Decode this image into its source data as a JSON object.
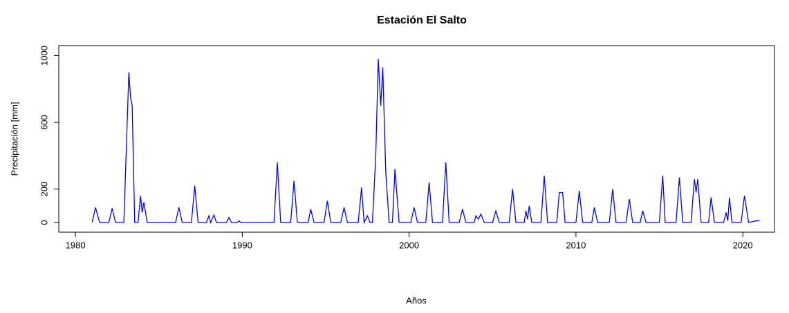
{
  "chart_data": {
    "type": "line",
    "title": "Estación El Salto",
    "x_label": "Años",
    "y_label": "Precipitación [mm]",
    "x": [
      1981.0,
      1981.2,
      1981.45,
      1982.0,
      1982.2,
      1982.4,
      1982.9,
      1983.05,
      1983.2,
      1983.3,
      1983.4,
      1983.55,
      1983.75,
      1983.9,
      1984.0,
      1984.1,
      1984.3,
      1986.0,
      1986.2,
      1986.4,
      1986.95,
      1987.15,
      1987.35,
      1987.85,
      1988.0,
      1988.1,
      1988.3,
      1988.45,
      1989.05,
      1989.2,
      1989.35,
      1989.7,
      1989.8,
      1989.9,
      1991.9,
      1992.1,
      1992.3,
      1992.9,
      1993.1,
      1993.3,
      1993.95,
      1994.1,
      1994.3,
      1994.9,
      1995.1,
      1995.3,
      1995.9,
      1996.1,
      1996.3,
      1996.95,
      1997.15,
      1997.3,
      1997.5,
      1997.65,
      1997.8,
      1998.0,
      1998.15,
      1998.3,
      1998.42,
      1998.6,
      1998.8,
      1999.0,
      1999.15,
      1999.4,
      2000.1,
      2000.3,
      2000.5,
      2001.0,
      2001.2,
      2001.4,
      2002.0,
      2002.2,
      2002.4,
      2003.0,
      2003.2,
      2003.4,
      2003.9,
      2004.0,
      2004.15,
      2004.3,
      2004.5,
      2005.0,
      2005.2,
      2005.4,
      2006.0,
      2006.2,
      2006.4,
      2006.9,
      2007.0,
      2007.1,
      2007.2,
      2007.35,
      2007.9,
      2008.1,
      2008.3,
      2008.85,
      2009.0,
      2009.2,
      2009.35,
      2010.0,
      2010.2,
      2010.4,
      2010.95,
      2011.1,
      2011.3,
      2012.0,
      2012.2,
      2012.4,
      2013.0,
      2013.2,
      2013.4,
      2013.85,
      2014.0,
      2014.2,
      2015.0,
      2015.2,
      2015.35,
      2016.0,
      2016.2,
      2016.4,
      2016.9,
      2017.1,
      2017.2,
      2017.3,
      2017.5,
      2017.95,
      2018.1,
      2018.3,
      2018.85,
      2019.0,
      2019.1,
      2019.2,
      2019.35,
      2019.9,
      2020.1,
      2020.35,
      2020.8,
      2021.0
    ],
    "series": [
      {
        "name": "Precipitación",
        "color": "#0000ff",
        "values": [
          0,
          90,
          0,
          0,
          85,
          0,
          0,
          450,
          900,
          750,
          700,
          0,
          0,
          160,
          60,
          120,
          0,
          0,
          90,
          0,
          0,
          220,
          0,
          0,
          40,
          0,
          45,
          0,
          0,
          30,
          0,
          0,
          10,
          0,
          0,
          360,
          0,
          0,
          250,
          0,
          0,
          80,
          0,
          0,
          130,
          0,
          0,
          90,
          0,
          0,
          210,
          0,
          40,
          0,
          0,
          400,
          980,
          700,
          930,
          300,
          0,
          0,
          320,
          0,
          0,
          90,
          0,
          0,
          240,
          0,
          0,
          360,
          0,
          0,
          80,
          0,
          0,
          40,
          20,
          50,
          0,
          0,
          70,
          0,
          0,
          200,
          0,
          0,
          70,
          20,
          100,
          0,
          0,
          280,
          0,
          0,
          180,
          180,
          0,
          0,
          190,
          0,
          0,
          90,
          0,
          0,
          200,
          0,
          0,
          140,
          0,
          0,
          70,
          0,
          0,
          280,
          0,
          0,
          270,
          0,
          0,
          260,
          180,
          260,
          0,
          0,
          150,
          0,
          0,
          60,
          10,
          150,
          0,
          0,
          160,
          0,
          10,
          10
        ]
      }
    ],
    "xlim": [
      1979.0,
      2021.9
    ],
    "xticks": [
      1980,
      1990,
      2000,
      2010,
      2020
    ],
    "ylim": [
      -58,
      1060
    ],
    "yticks": [
      0,
      200,
      600,
      1000
    ],
    "grid": false
  }
}
